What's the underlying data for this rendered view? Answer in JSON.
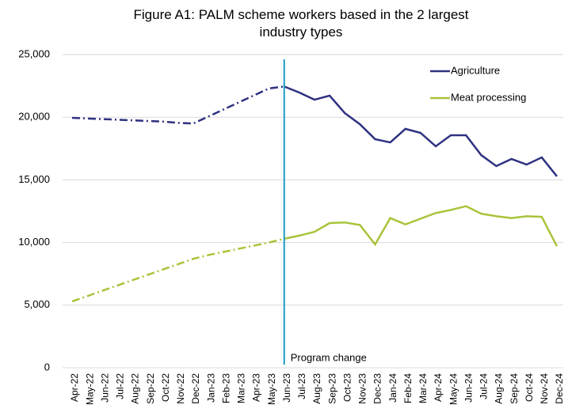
{
  "chart_data": {
    "type": "line",
    "title": "Figure A1: PALM scheme workers based in the 2 largest industry types",
    "categories": [
      "Apr-22",
      "May-22",
      "Jun-22",
      "Jul-22",
      "Aug-22",
      "Sep-22",
      "Oct-22",
      "Nov-22",
      "Dec-22",
      "Jan-23",
      "Feb-23",
      "Mar-23",
      "Apr-23",
      "May-23",
      "Jun-23",
      "Jul-23",
      "Aug-23",
      "Sep-23",
      "Oct-23",
      "Nov-23",
      "Dec-23",
      "Jan-24",
      "Feb-24",
      "Mar-24",
      "Apr-24",
      "May-24",
      "Jun-24",
      "Jul-24",
      "Aug-24",
      "Sep-24",
      "Oct-24",
      "Nov-24",
      "Dec-24"
    ],
    "series": [
      {
        "name": "Agriculture",
        "color": "#2e3180",
        "values": [
          19950,
          19900,
          19850,
          19800,
          19750,
          19700,
          19650,
          19550,
          19500,
          20060,
          20620,
          21180,
          21740,
          22300,
          22450,
          21970,
          21400,
          21720,
          20330,
          19440,
          18250,
          17990,
          19070,
          18750,
          17680,
          18560,
          18560,
          16980,
          16100,
          16670,
          16220,
          16790,
          15280
        ]
      },
      {
        "name": "Meat processing",
        "color": "#a8c43a",
        "values": [
          5300,
          5720,
          6150,
          6570,
          7000,
          7420,
          7850,
          8270,
          8700,
          9000,
          9250,
          9500,
          9750,
          10000,
          10300,
          10550,
          10850,
          11550,
          11600,
          11400,
          9850,
          11950,
          11450,
          11900,
          12350,
          12600,
          12900,
          12300,
          12100,
          11950,
          12100,
          12050,
          9700
        ]
      }
    ],
    "annotations": [
      {
        "text": "Program change",
        "x": "Jun-23",
        "color": "#1a9bc4"
      }
    ],
    "ylim": [
      0,
      25000
    ],
    "yticks": [
      0,
      {
        "value": 5000,
        "label": "5,000"
      },
      {
        "value": 10000,
        "label": "10,000"
      },
      {
        "value": 15000,
        "label": "15,000"
      },
      {
        "value": 20000,
        "label": "20,000"
      },
      {
        "value": 25000,
        "label": "25,000"
      }
    ],
    "grid": true,
    "legend": "upper right"
  }
}
